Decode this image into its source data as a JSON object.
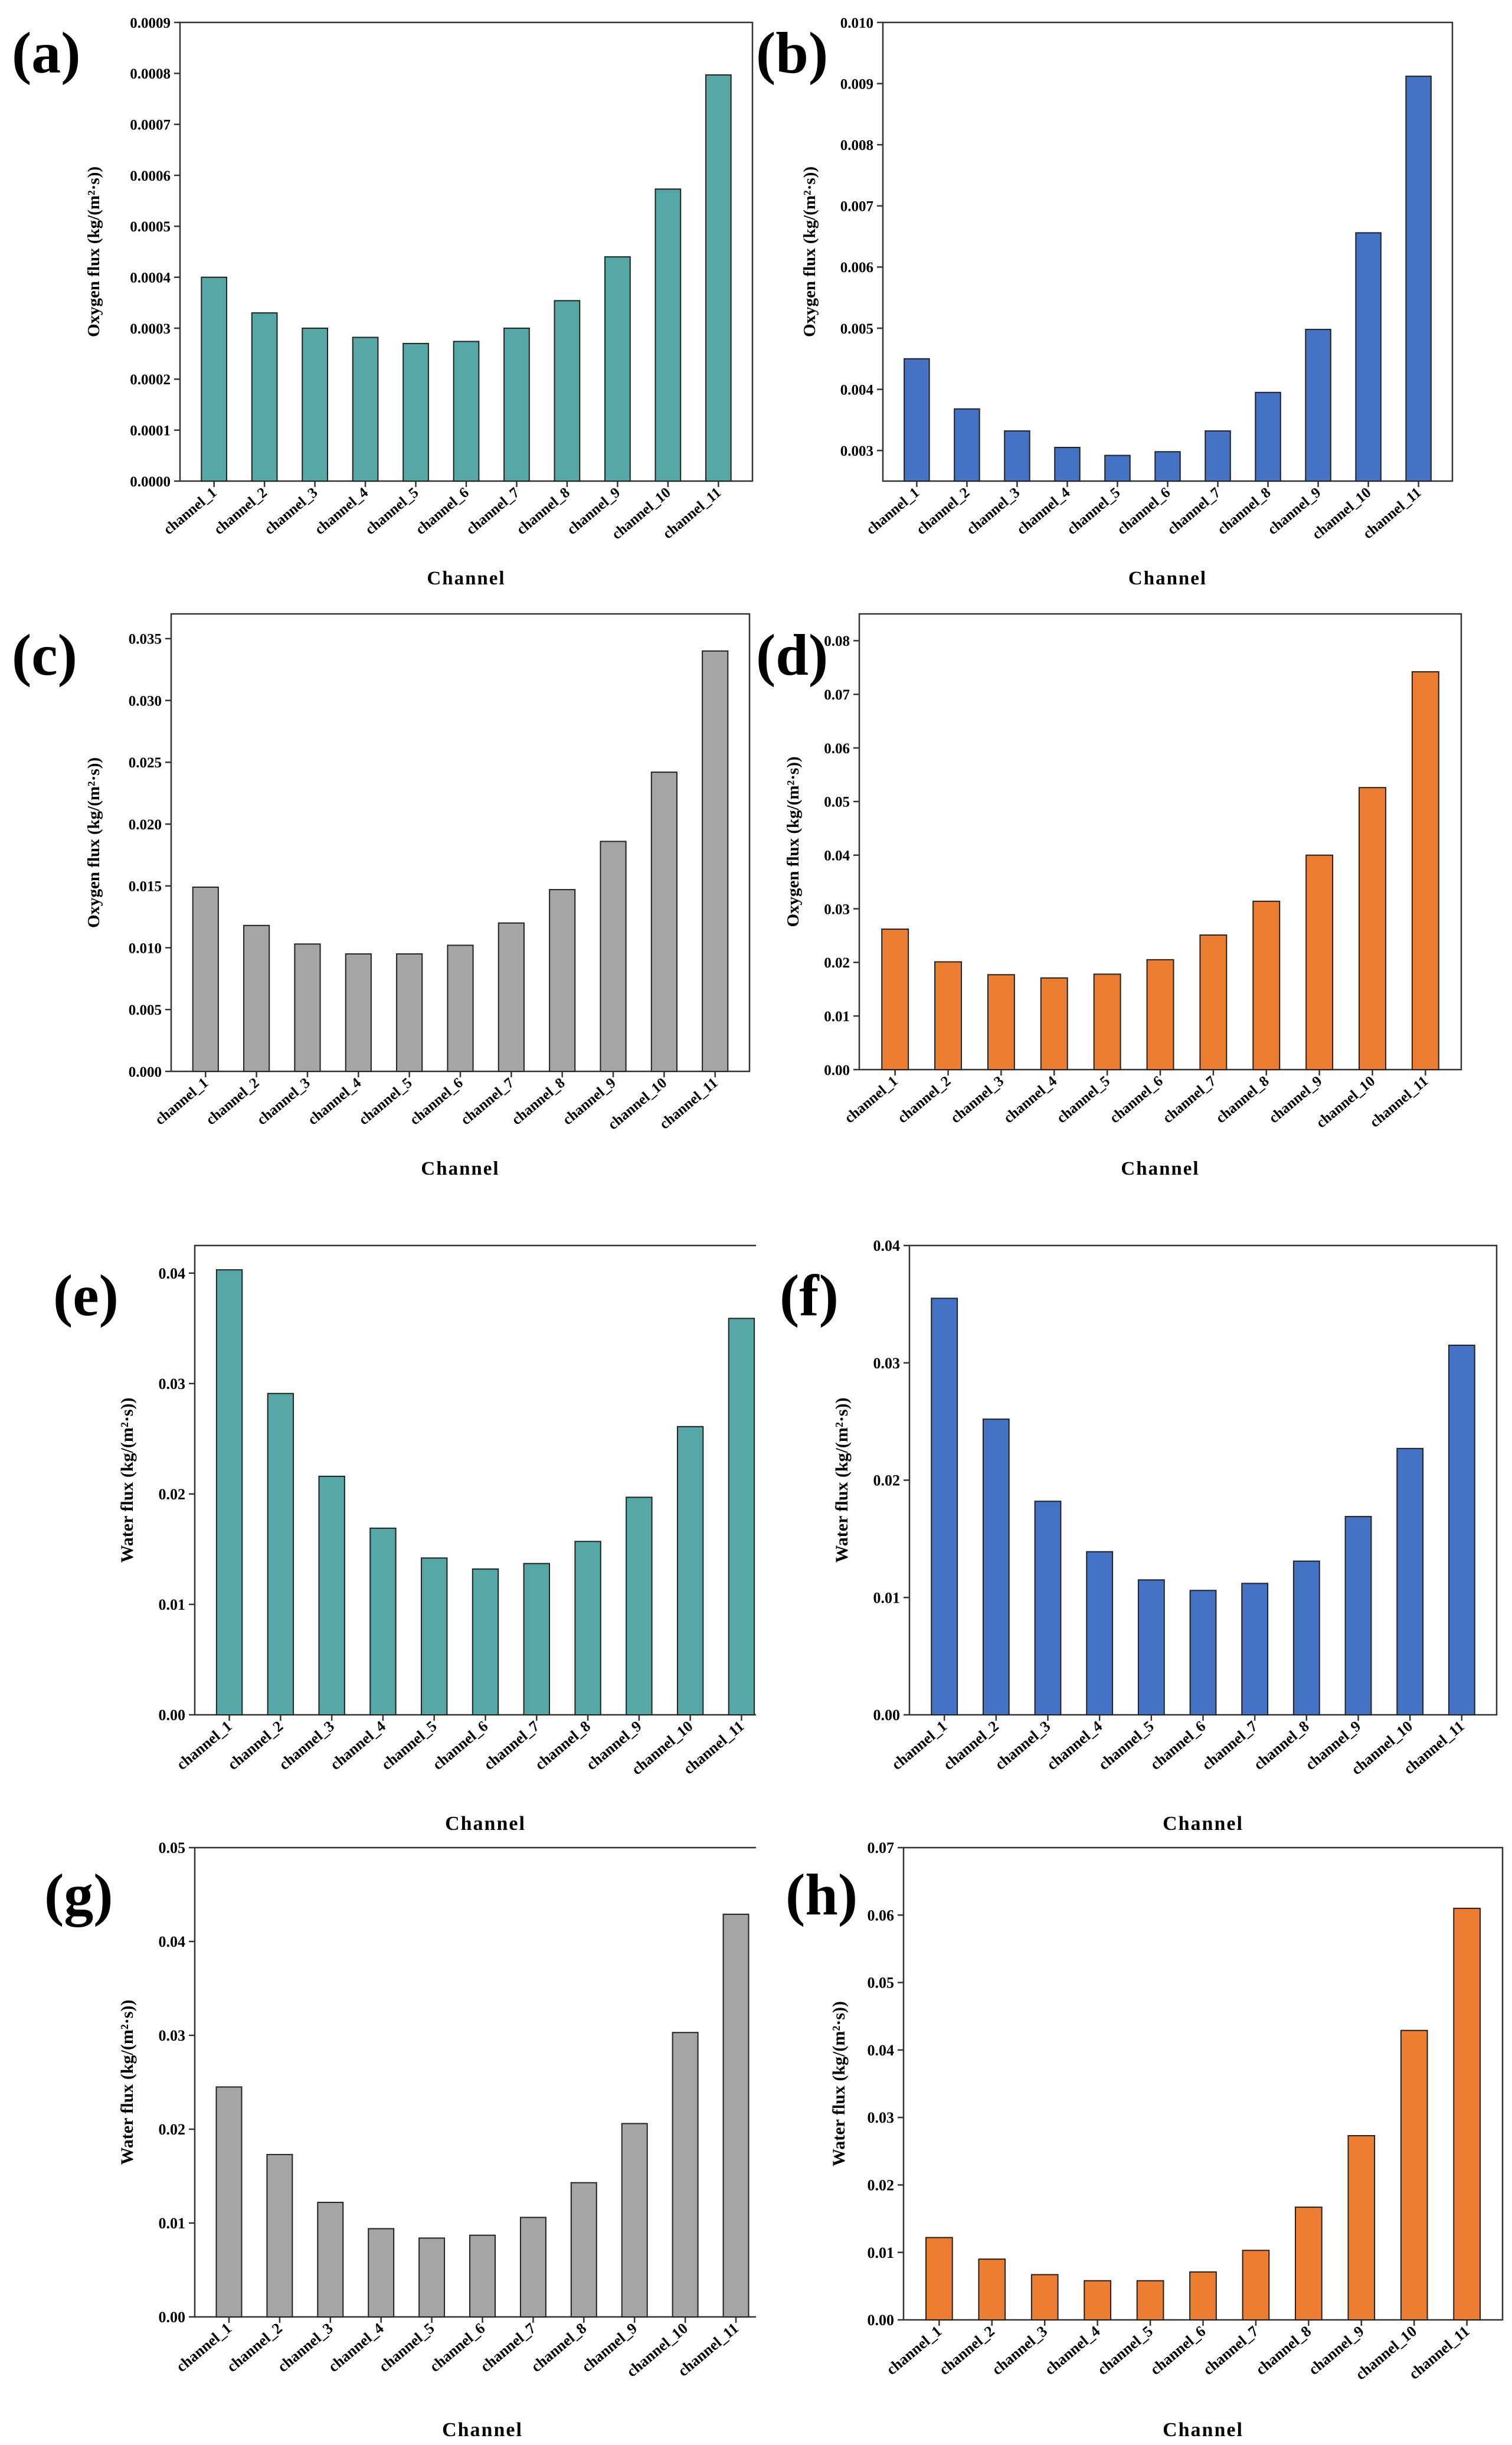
{
  "chart_data": [
    {
      "type": "bar",
      "panel_label": "(a)",
      "title": "",
      "xlabel": "Channel",
      "ylabel": "Oxygen flux (kg/(m²·s))",
      "categories": [
        "channel_1",
        "channel_2",
        "channel_3",
        "channel_4",
        "channel_5",
        "channel_6",
        "channel_7",
        "channel_8",
        "channel_9",
        "channel_10",
        "channel_11"
      ],
      "values": [
        0.0004,
        0.00033,
        0.0003,
        0.000282,
        0.00027,
        0.000274,
        0.0003,
        0.000354,
        0.00044,
        0.000573,
        0.000797
      ],
      "ylim": [
        0,
        0.0009
      ],
      "yticks": [
        "0.0000",
        "0.0001",
        "0.0002",
        "0.0003",
        "0.0004",
        "0.0005",
        "0.0006",
        "0.0007",
        "0.0008",
        "0.0009"
      ],
      "color": "#55a8a5"
    },
    {
      "type": "bar",
      "panel_label": "(b)",
      "title": "",
      "xlabel": "Channel",
      "ylabel": "Oxygen flux (kg/(m²·s))",
      "categories": [
        "channel_1",
        "channel_2",
        "channel_3",
        "channel_4",
        "channel_5",
        "channel_6",
        "channel_7",
        "channel_8",
        "channel_9",
        "channel_10",
        "channel_11"
      ],
      "values": [
        0.0045,
        0.00368,
        0.00332,
        0.00305,
        0.00292,
        0.00298,
        0.00332,
        0.00395,
        0.00498,
        0.00656,
        0.00912
      ],
      "ylim": [
        0.0025,
        0.01
      ],
      "yticks": [
        "0.003",
        "0.004",
        "0.005",
        "0.006",
        "0.007",
        "0.008",
        "0.009",
        "0.010"
      ],
      "ytick_values": [
        0.003,
        0.004,
        0.005,
        0.006,
        0.007,
        0.008,
        0.009,
        0.01
      ],
      "color": "#4472c4"
    },
    {
      "type": "bar",
      "panel_label": "(c)",
      "title": "",
      "xlabel": "Channel",
      "ylabel": "Oxygen flux (kg/(m²·s))",
      "categories": [
        "channel_1",
        "channel_2",
        "channel_3",
        "channel_4",
        "channel_5",
        "channel_6",
        "channel_7",
        "channel_8",
        "channel_9",
        "channel_10",
        "channel_11"
      ],
      "values": [
        0.0149,
        0.0118,
        0.0103,
        0.0095,
        0.0095,
        0.0102,
        0.012,
        0.0147,
        0.0186,
        0.0242,
        0.034
      ],
      "ylim": [
        0,
        0.037
      ],
      "yticks": [
        "0.000",
        "0.005",
        "0.010",
        "0.015",
        "0.020",
        "0.025",
        "0.030",
        "0.035"
      ],
      "ytick_values": [
        0,
        0.005,
        0.01,
        0.015,
        0.02,
        0.025,
        0.03,
        0.035
      ],
      "color": "#a5a5a5"
    },
    {
      "type": "bar",
      "panel_label": "(d)",
      "title": "",
      "xlabel": "Channel",
      "ylabel": "Oxygen flux (kg/(m²·s))",
      "categories": [
        "channel_1",
        "channel_2",
        "channel_3",
        "channel_4",
        "channel_5",
        "channel_6",
        "channel_7",
        "channel_8",
        "channel_9",
        "channel_10",
        "channel_11"
      ],
      "values": [
        0.0262,
        0.0201,
        0.0177,
        0.0171,
        0.0178,
        0.0205,
        0.0251,
        0.0314,
        0.04,
        0.0526,
        0.0742
      ],
      "ylim": [
        0,
        0.085
      ],
      "yticks": [
        "0.00",
        "0.01",
        "0.02",
        "0.03",
        "0.04",
        "0.05",
        "0.06",
        "0.07",
        "0.08"
      ],
      "ytick_values": [
        0,
        0.01,
        0.02,
        0.03,
        0.04,
        0.05,
        0.06,
        0.07,
        0.08
      ],
      "color": "#ed7d31"
    },
    {
      "type": "bar",
      "panel_label": "(e)",
      "title": "",
      "xlabel": "Channel",
      "ylabel": "Water flux (kg/(m²·s))",
      "categories": [
        "channel_1",
        "channel_2",
        "channel_3",
        "channel_4",
        "channel_5",
        "channel_6",
        "channel_7",
        "channel_8",
        "channel_9",
        "channel_10",
        "channel_11"
      ],
      "values": [
        0.0403,
        0.0291,
        0.0216,
        0.0169,
        0.0142,
        0.0132,
        0.0137,
        0.0157,
        0.0197,
        0.0261,
        0.0359
      ],
      "ylim": [
        0,
        0.0425
      ],
      "yticks": [
        "0.00",
        "0.01",
        "0.02",
        "0.03",
        "0.04"
      ],
      "ytick_values": [
        0,
        0.01,
        0.02,
        0.03,
        0.04
      ],
      "color": "#55a8a5"
    },
    {
      "type": "bar",
      "panel_label": "(f)",
      "title": "",
      "xlabel": "Channel",
      "ylabel": "Water flux (kg/(m²·s))",
      "categories": [
        "channel_1",
        "channel_2",
        "channel_3",
        "channel_4",
        "channel_5",
        "channel_6",
        "channel_7",
        "channel_8",
        "channel_9",
        "channel_10",
        "channel_11"
      ],
      "values": [
        0.0355,
        0.0252,
        0.0182,
        0.0139,
        0.0115,
        0.0106,
        0.0112,
        0.0131,
        0.0169,
        0.0227,
        0.0315
      ],
      "ylim": [
        0,
        0.04
      ],
      "yticks": [
        "0.00",
        "0.01",
        "0.02",
        "0.03",
        "0.04"
      ],
      "ytick_values": [
        0,
        0.01,
        0.02,
        0.03,
        0.04
      ],
      "color": "#4472c4"
    },
    {
      "type": "bar",
      "panel_label": "(g)",
      "title": "",
      "xlabel": "Channel",
      "ylabel": "Water flux (kg/(m²·s))",
      "categories": [
        "channel_1",
        "channel_2",
        "channel_3",
        "channel_4",
        "channel_5",
        "channel_6",
        "channel_7",
        "channel_8",
        "channel_9",
        "channel_10",
        "channel_11"
      ],
      "values": [
        0.0245,
        0.0173,
        0.0122,
        0.0094,
        0.0084,
        0.0087,
        0.0106,
        0.0143,
        0.0206,
        0.0303,
        0.0429
      ],
      "ylim": [
        0,
        0.05
      ],
      "yticks": [
        "0.00",
        "0.01",
        "0.02",
        "0.03",
        "0.04",
        "0.05"
      ],
      "ytick_values": [
        0,
        0.01,
        0.02,
        0.03,
        0.04,
        0.05
      ],
      "color": "#a5a5a5"
    },
    {
      "type": "bar",
      "panel_label": "(h)",
      "title": "",
      "xlabel": "Channel",
      "ylabel": "Water flux (kg/(m²·s))",
      "categories": [
        "channel_1",
        "channel_2",
        "channel_3",
        "channel_4",
        "channel_5",
        "channel_6",
        "channel_7",
        "channel_8",
        "channel_9",
        "channel_10",
        "channel_11"
      ],
      "values": [
        0.0122,
        0.009,
        0.0067,
        0.0058,
        0.0058,
        0.0071,
        0.0103,
        0.0167,
        0.0273,
        0.0429,
        0.061
      ],
      "ylim": [
        0,
        0.07
      ],
      "yticks": [
        "0.00",
        "0.01",
        "0.02",
        "0.03",
        "0.04",
        "0.05",
        "0.06",
        "0.07"
      ],
      "ytick_values": [
        0,
        0.01,
        0.02,
        0.03,
        0.04,
        0.05,
        0.06,
        0.07
      ],
      "color": "#ed7d31"
    }
  ]
}
